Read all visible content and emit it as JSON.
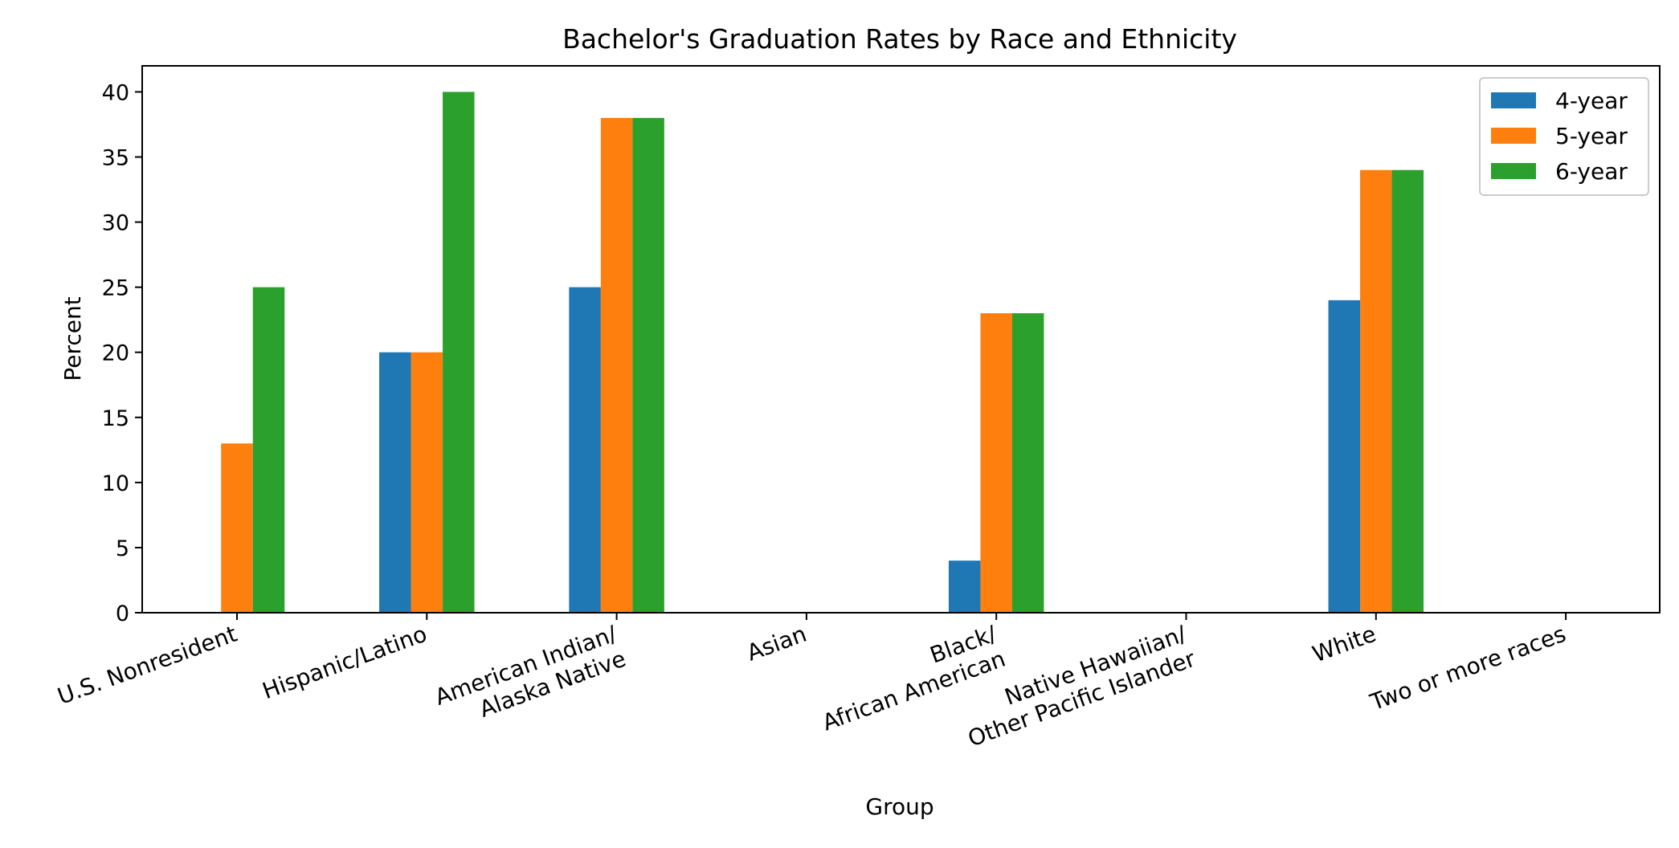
{
  "chart_data": {
    "type": "bar",
    "title": "Bachelor's Graduation Rates by Race and Ethnicity",
    "xlabel": "Group",
    "ylabel": "Percent",
    "ylim": [
      0,
      42
    ],
    "yticks": [
      0,
      5,
      10,
      15,
      20,
      25,
      30,
      35,
      40
    ],
    "grid": false,
    "legend_position": "top-right",
    "categories": [
      "U.S. Nonresident",
      "Hispanic/Latino",
      "American Indian/\nAlaska Native",
      "Asian",
      "Black/\nAfrican American",
      "Native Hawaiian/\nOther Pacific Islander",
      "White",
      "Two or more races"
    ],
    "series": [
      {
        "name": "4-year",
        "color": "#1f77b4",
        "values": [
          0,
          20,
          25,
          0,
          4,
          0,
          24,
          0
        ]
      },
      {
        "name": "5-year",
        "color": "#ff7f0e",
        "values": [
          13,
          20,
          38,
          0,
          23,
          0,
          34,
          0
        ]
      },
      {
        "name": "6-year",
        "color": "#2ca02c",
        "values": [
          25,
          40,
          38,
          0,
          23,
          0,
          34,
          0
        ]
      }
    ]
  }
}
